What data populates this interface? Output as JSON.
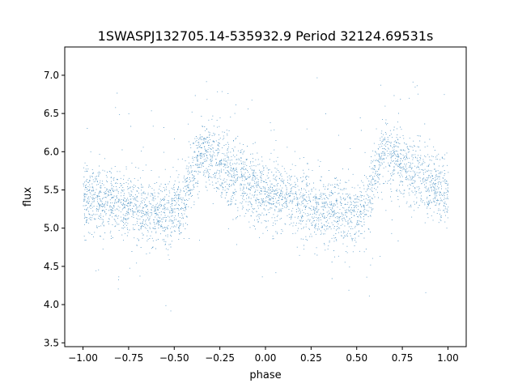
{
  "chart_data": {
    "type": "scatter",
    "title": "1SWASPJ132705.14-535932.9 Period 32124.69531s",
    "xlabel": "phase",
    "ylabel": "flux",
    "xlim": [
      -1.1,
      1.1
    ],
    "ylim": [
      3.45,
      7.37
    ],
    "x_ticks": [
      "−1.00",
      "−0.75",
      "−0.50",
      "−0.25",
      "0.00",
      "0.25",
      "0.50",
      "0.75",
      "1.00"
    ],
    "y_ticks": [
      "3.5",
      "4.0",
      "4.5",
      "5.0",
      "5.5",
      "6.0",
      "6.5",
      "7.0"
    ],
    "grid": false,
    "legend": "none",
    "point_color": "#1f77b4",
    "series": [
      {
        "values_description_free": true,
        "phase_flux_curve": {
          "phase": [
            -1.0,
            -0.9,
            -0.8,
            -0.7,
            -0.6,
            -0.5,
            -0.45,
            -0.4,
            -0.35,
            -0.3,
            -0.2,
            -0.1,
            0.0,
            0.1,
            0.2,
            0.3,
            0.4,
            0.5,
            0.55,
            0.6,
            0.65,
            0.7,
            0.8,
            0.9,
            1.0
          ],
          "flux": [
            5.42,
            5.37,
            5.31,
            5.26,
            5.21,
            5.2,
            5.3,
            5.7,
            6.02,
            5.92,
            5.73,
            5.56,
            5.45,
            5.38,
            5.31,
            5.25,
            5.21,
            5.2,
            5.3,
            5.7,
            6.02,
            5.92,
            5.73,
            5.56,
            5.45
          ]
        },
        "scatter_sigma": 0.22,
        "n_points": 14000
      }
    ]
  }
}
